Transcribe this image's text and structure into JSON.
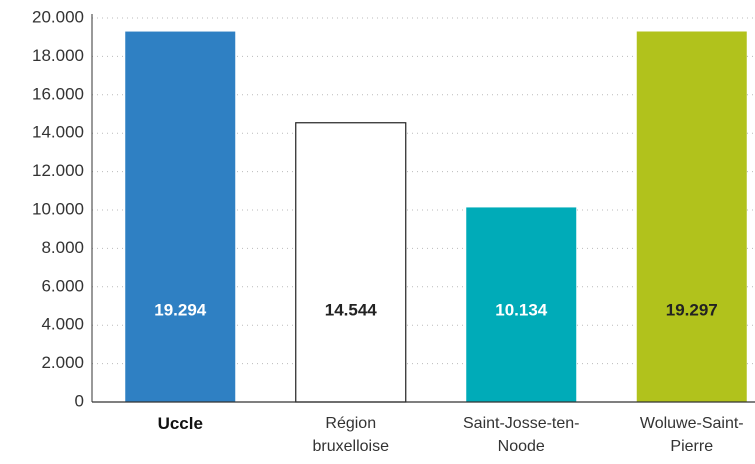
{
  "chart_data": {
    "type": "bar",
    "categories": [
      "Uccle",
      "Région bruxelloise",
      "Saint-Josse-ten-Noode",
      "Woluwe-Saint-Pierre"
    ],
    "values": [
      19294,
      14544,
      10134,
      19297
    ],
    "value_labels": [
      "19.294",
      "14.544",
      "10.134",
      "19.297"
    ],
    "colors": [
      "#2f80c3",
      "#ffffff",
      "#00abb8",
      "#b1c21c"
    ],
    "label_colors": [
      "#ffffff",
      "#222222",
      "#ffffff",
      "#222222"
    ],
    "bold_category": 0,
    "ylim": [
      0,
      20000
    ],
    "yticks": [
      0,
      {
        "value": 2000,
        "label": "2.000"
      },
      {
        "value": 4000,
        "label": "4.000"
      },
      {
        "value": 6000,
        "label": "6.000"
      },
      {
        "value": 8000,
        "label": "8.000"
      },
      {
        "value": 10000,
        "label": "10.000"
      },
      {
        "value": 12000,
        "label": "12.000"
      },
      {
        "value": 14000,
        "label": "14.000"
      },
      {
        "value": 16000,
        "label": "16.000"
      },
      {
        "value": 18000,
        "label": "18.000"
      },
      {
        "value": 20000,
        "label": "20.000"
      }
    ],
    "grid": true
  }
}
